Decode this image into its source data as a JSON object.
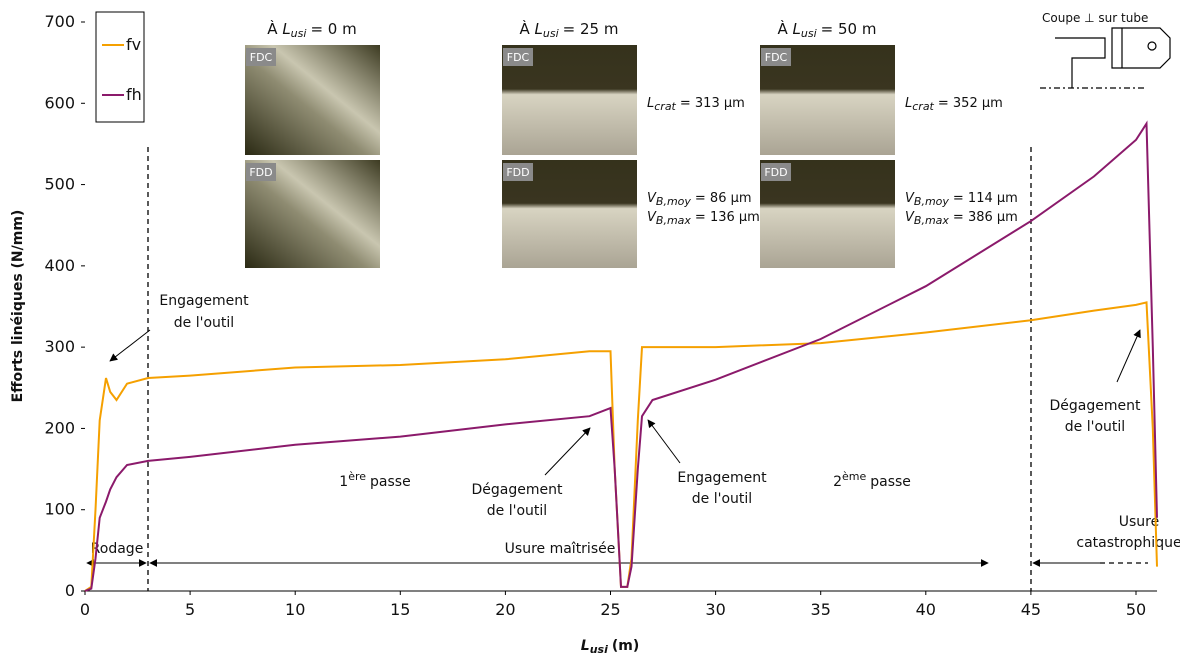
{
  "chart_data": {
    "type": "line",
    "y_label": "Efforts linéiques (N/mm)",
    "x_label": {
      "symbol": "L",
      "sub": "usi",
      "unit": "(m)"
    },
    "x": [
      0,
      0.3,
      0.5,
      0.7,
      1.0,
      1.2,
      1.5,
      2,
      3,
      5,
      10,
      15,
      20,
      24,
      25,
      25.2,
      25.5,
      25.8,
      26,
      26.3,
      26.5,
      27,
      30,
      35,
      40,
      45,
      48,
      50,
      50.5,
      50.8,
      51
    ],
    "series": [
      {
        "name": "fv",
        "color": "#f5a000",
        "values": [
          0,
          5,
          100,
          210,
          262,
          245,
          235,
          255,
          262,
          265,
          275,
          278,
          285,
          295,
          295,
          150,
          5,
          5,
          40,
          210,
          300,
          300,
          300,
          305,
          318,
          333,
          345,
          352,
          355,
          200,
          30
        ]
      },
      {
        "name": "fh",
        "color": "#8b1a6b",
        "values": [
          0,
          3,
          40,
          90,
          110,
          125,
          140,
          155,
          160,
          165,
          180,
          190,
          205,
          215,
          225,
          150,
          5,
          5,
          30,
          150,
          215,
          235,
          260,
          310,
          375,
          455,
          510,
          555,
          575,
          300,
          90
        ]
      }
    ],
    "xlim": [
      0,
      51
    ],
    "ylim": [
      0,
      700
    ],
    "xticks": [
      0,
      5,
      10,
      15,
      20,
      25,
      30,
      35,
      40,
      45,
      50
    ],
    "yticks": [
      0,
      100,
      200,
      300,
      400,
      500,
      600,
      700
    ],
    "images": [
      {
        "prefix": "À",
        "symbol": "L",
        "sub": "usi",
        "text": "= 0 m",
        "top": "FDC",
        "bottom": "FDD"
      },
      {
        "prefix": "À",
        "symbol": "L",
        "sub": "usi",
        "text": "= 25 m",
        "top": "FDC",
        "bottom": "FDD"
      },
      {
        "prefix": "À",
        "symbol": "L",
        "sub": "usi",
        "text": "= 50 m",
        "top": "FDC",
        "bottom": "FDD"
      }
    ],
    "measures": [
      {
        "symbol": "L",
        "sub": "crat",
        "text": "= 313 µm"
      },
      {
        "symbol": "V",
        "sub": "B,moy",
        "text": "= 86 µm"
      },
      {
        "symbol": "V",
        "sub": "B,max",
        "text": "= 136 µm"
      },
      {
        "symbol": "L",
        "sub": "crat",
        "text": "= 352 µm"
      },
      {
        "symbol": "V",
        "sub": "B,moy",
        "text": "= 114 µm"
      },
      {
        "symbol": "V",
        "sub": "B,max",
        "text": "= 386 µm"
      }
    ],
    "annotations": {
      "engage1": [
        "Engagement",
        "de l'outil"
      ],
      "pass1": {
        "num": "1",
        "sup": "ère",
        "text": "passe"
      },
      "degage1": [
        "Dégagement",
        "de l'outil"
      ],
      "engage2": [
        "Engagement",
        "de l'outil"
      ],
      "pass2": {
        "num": "2",
        "sup": "ème",
        "text": "passe"
      },
      "degage2": [
        "Dégagement",
        "de l'outil"
      ],
      "rodage": "Rodage",
      "maitrisee": "Usure maîtrisée",
      "catastrophique": [
        "Usure",
        "catastrophique"
      ],
      "section": "Coupe ⊥ sur tube"
    }
  }
}
